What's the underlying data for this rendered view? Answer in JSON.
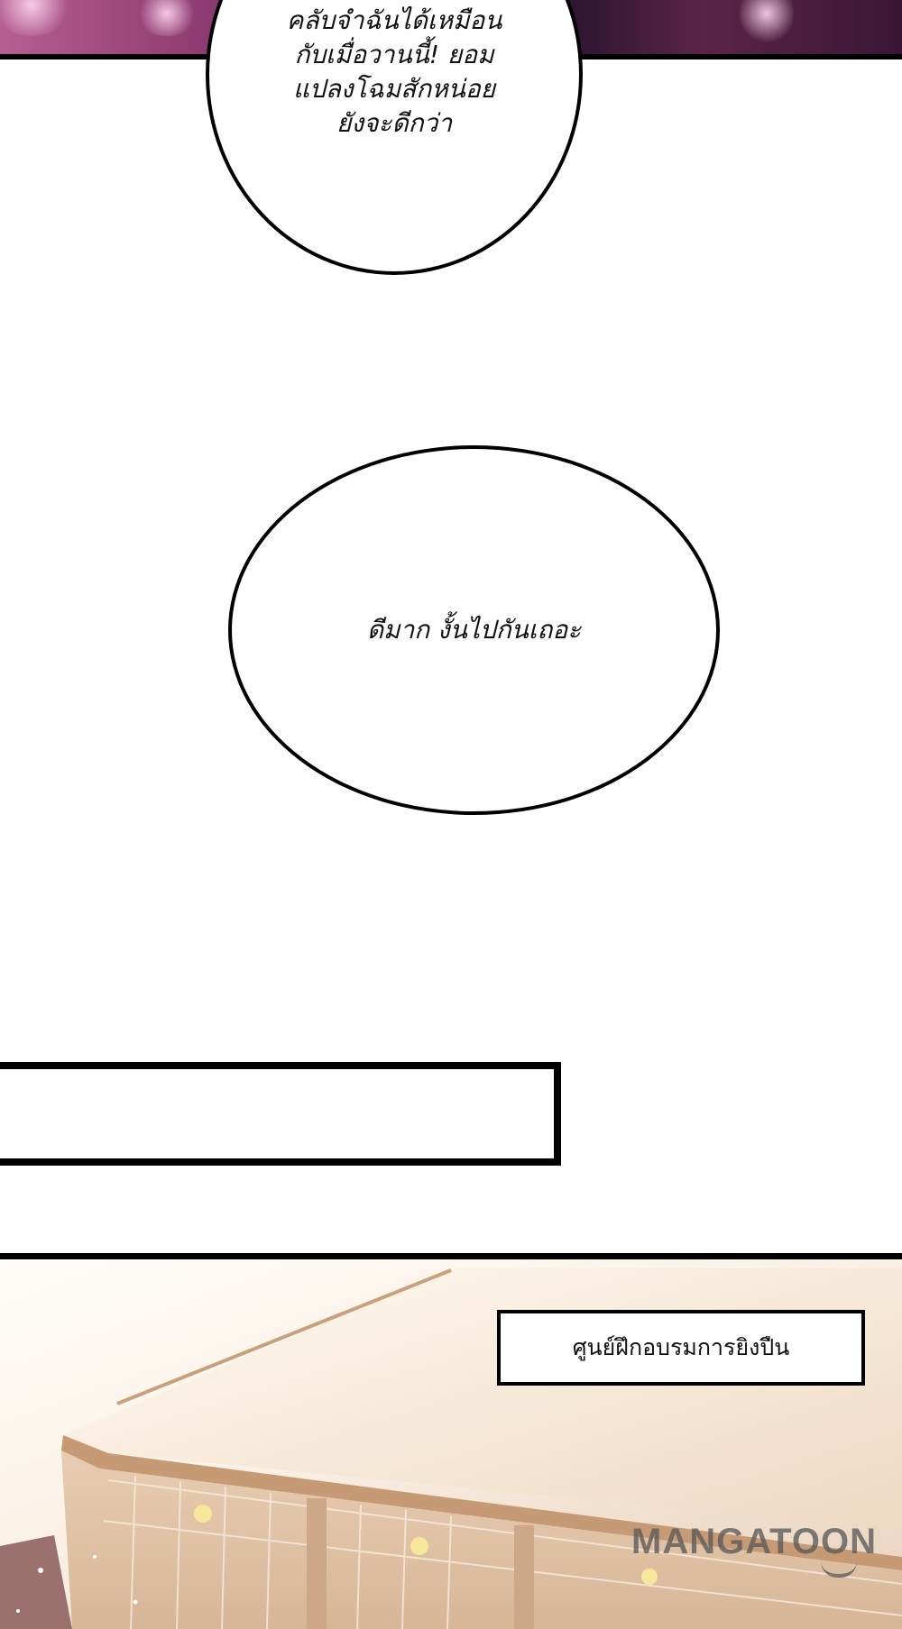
{
  "panels": {
    "top": {
      "bubble_lines": [
        "คลับจำฉันได้เหมือน",
        "กับเมื่อวานนี้! ยอม",
        "แปลงโฉมสักหน่อย",
        "ยังจะดีกว่า"
      ]
    },
    "middle": {
      "bubble_text": "ดีมาก งั้นไปกันเถอะ",
      "caption_box_text": ""
    },
    "bottom": {
      "location_label": "ศูนย์ฝึกอบรมการยิงปืน"
    }
  },
  "watermark": {
    "text": "MANGATOON"
  },
  "colors": {
    "ink": "#000000",
    "paper": "#ffffff",
    "night_purple": "#4a1e40",
    "building_cream": "#f1e0cf"
  }
}
